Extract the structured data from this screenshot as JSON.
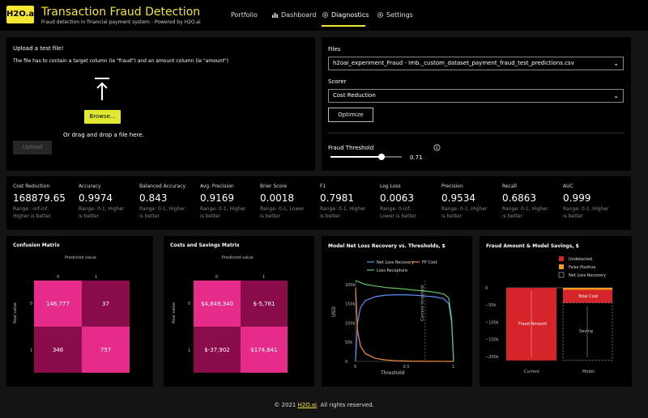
{
  "header": {
    "logo": "H2O.ai",
    "title": "Transaction Fraud Detection",
    "subtitle": "Fraud detection in financial payment system - Powered by H2O.ai",
    "nav": {
      "portfolio": "Portfolio",
      "dashboard": "Dashboard",
      "diagnostics": "Diagnostics",
      "settings": "Settings"
    }
  },
  "upload": {
    "title": "Upload a test file!",
    "note": "The file has to contain a target column (ie \"fraud\") and an amount column (ie \"amount\")",
    "browse": "Browse...",
    "drop": "Or drag and drop a file here.",
    "upload_btn": "Upload"
  },
  "files": {
    "label": "Files",
    "value": "h2oai_experiment_Fraud - Imb._custom_dataset_payment_fraud_test_predictions.csv",
    "scorer_label": "Scorer",
    "scorer_value": "Cost Reduction",
    "optimize": "Optimize",
    "threshold_label": "Fraud Threshold",
    "threshold_value": "0.71"
  },
  "metrics": [
    {
      "name": "Cost Reduction",
      "value": "168879.65",
      "range": "Range: -inf-inf,",
      "dir": "Higher is better"
    },
    {
      "name": "Accuracy",
      "value": "0.9974",
      "range": "Range: 0-1, Higher",
      "dir": "is better"
    },
    {
      "name": "Balanced Accuracy",
      "value": "0.843",
      "range": "Range: 0-1, Higher",
      "dir": "is better"
    },
    {
      "name": "Avg. Precision",
      "value": "0.9169",
      "range": "Range: 0-1, Higher",
      "dir": "is better"
    },
    {
      "name": "Brier Score",
      "value": "0.0018",
      "range": "Range: 0-1, Lower",
      "dir": "is better"
    },
    {
      "name": "F1",
      "value": "0.7981",
      "range": "Range: 0-1, Higher",
      "dir": "is better"
    },
    {
      "name": "Log Loss",
      "value": "0.0063",
      "range": "Range: 0-inf,",
      "dir": "Lower is better"
    },
    {
      "name": "Precision",
      "value": "0.9534",
      "range": "Range: 0-1, Higher",
      "dir": "is better"
    },
    {
      "name": "Recall",
      "value": "0.6863",
      "range": "Range: 0-1, Higher",
      "dir": "is better"
    },
    {
      "name": "AUC",
      "value": "0.999",
      "range": "Range: 0-1, Higher",
      "dir": "is better"
    }
  ],
  "confusion": {
    "title": "Confusion Matrix",
    "xlabel": "Predicted value",
    "ylabel": "Real value",
    "ticks": [
      "0",
      "1"
    ],
    "cells": [
      "146,777",
      "37",
      "346",
      "757"
    ]
  },
  "costs": {
    "title": "Costs and Savings Matrix",
    "xlabel": "Predicted value",
    "ylabel": "Real value",
    "ticks": [
      "0",
      "1"
    ],
    "cells": [
      "$4,849,340",
      "$-5,761",
      "$-37,902",
      "$174,841"
    ]
  },
  "colors": {
    "accent": "#f5e633",
    "cell_light": "#e62b8a",
    "cell_dark": "#8a0c4a",
    "fraud_red": "#d6242b",
    "fp_orange": "#f79a1c"
  },
  "chart_data": [
    {
      "type": "line",
      "title": "Model Net Loss Recovery vs. Thresholds, $",
      "xlabel": "Threshold",
      "ylabel": "USD",
      "x": [
        0,
        0.02,
        0.05,
        0.1,
        0.2,
        0.3,
        0.4,
        0.5,
        0.6,
        0.7,
        0.8,
        0.9,
        0.95,
        0.98,
        1
      ],
      "series": [
        {
          "name": "Net Loss Recovery",
          "color": "#5b8ff9",
          "values": [
            0,
            100000,
            140000,
            158000,
            168000,
            172000,
            173000,
            173000,
            172000,
            170000,
            168000,
            163000,
            150000,
            100000,
            0
          ]
        },
        {
          "name": "FP Cost",
          "color": "#f08a3e",
          "values": [
            190000,
            80000,
            40000,
            20000,
            8000,
            4000,
            2000,
            1000,
            500,
            300,
            200,
            100,
            50,
            20,
            0
          ]
        },
        {
          "name": "Loss Recapture",
          "color": "#5fc65f",
          "values": [
            210000,
            208000,
            205000,
            200000,
            196000,
            192000,
            190000,
            188000,
            185000,
            183000,
            180000,
            175000,
            165000,
            110000,
            0
          ]
        }
      ],
      "annotation": "Current threshold",
      "threshold": 0.71,
      "xticks": [
        "0",
        "0.5",
        "1"
      ],
      "yticks": [
        "0",
        "50k",
        "100k",
        "150k",
        "200k"
      ],
      "ylim": [
        0,
        210000
      ]
    },
    {
      "type": "bar",
      "title": "Fraud Amount & Model Savings, $",
      "categories": [
        "Current",
        "Model"
      ],
      "legend": [
        "Undetected",
        "False Positive",
        "Net Loss Recovery"
      ],
      "yticks": [
        "0",
        "−50k",
        "−100k",
        "−150k",
        "−200k"
      ],
      "ylim": [
        -210000,
        0
      ],
      "bars": [
        {
          "category": "Current",
          "series": "Undetected",
          "value": -212000,
          "label": "Fraud Amount"
        },
        {
          "category": "Model",
          "series": "Undetected",
          "value": -37902
        },
        {
          "category": "Model",
          "series": "False Positive",
          "value": -5761,
          "label": "Total Cost"
        },
        {
          "category": "Model",
          "series": "Net Loss Recovery",
          "value": -168000,
          "label": "Saving"
        }
      ]
    }
  ],
  "footer": {
    "pre": "© 2021 ",
    "link": "H2O.ai",
    "post": ". All rights reserved."
  }
}
